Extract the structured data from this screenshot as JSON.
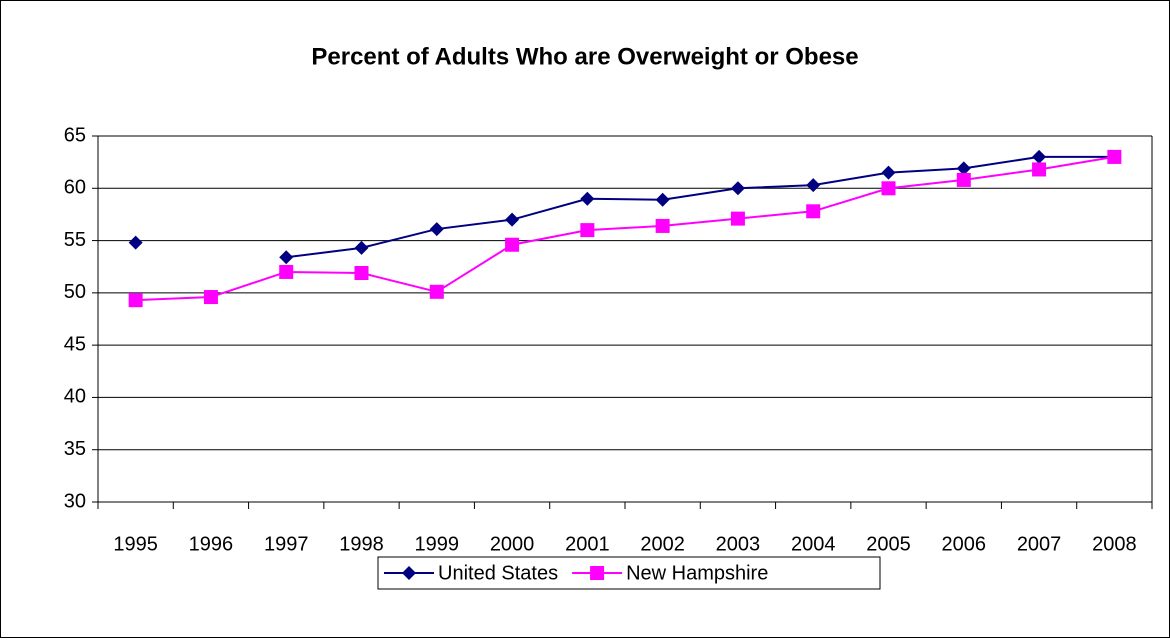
{
  "chart_data": {
    "type": "line",
    "title": "Percent of Adults Who are Overweight or Obese",
    "categories": [
      "1995",
      "1996",
      "1997",
      "1998",
      "1999",
      "2000",
      "2001",
      "2002",
      "2003",
      "2004",
      "2005",
      "2006",
      "2007",
      "2008"
    ],
    "series": [
      {
        "name": "United States",
        "color": "#000080",
        "marker": "diamond",
        "values": [
          54.8,
          null,
          53.4,
          54.3,
          56.1,
          57.0,
          59.0,
          58.9,
          60.0,
          60.3,
          61.5,
          61.9,
          63.0,
          63.0
        ]
      },
      {
        "name": "New Hampshire",
        "color": "#ff00ff",
        "marker": "square",
        "values": [
          49.3,
          49.6,
          52.0,
          51.9,
          50.1,
          54.6,
          56.0,
          56.4,
          57.1,
          57.8,
          60.0,
          60.8,
          61.8,
          63.0
        ]
      }
    ],
    "ylim": [
      30,
      65
    ],
    "yticks": [
      30,
      35,
      40,
      45,
      50,
      55,
      60,
      65
    ],
    "grid": true,
    "legend": "bottom"
  }
}
